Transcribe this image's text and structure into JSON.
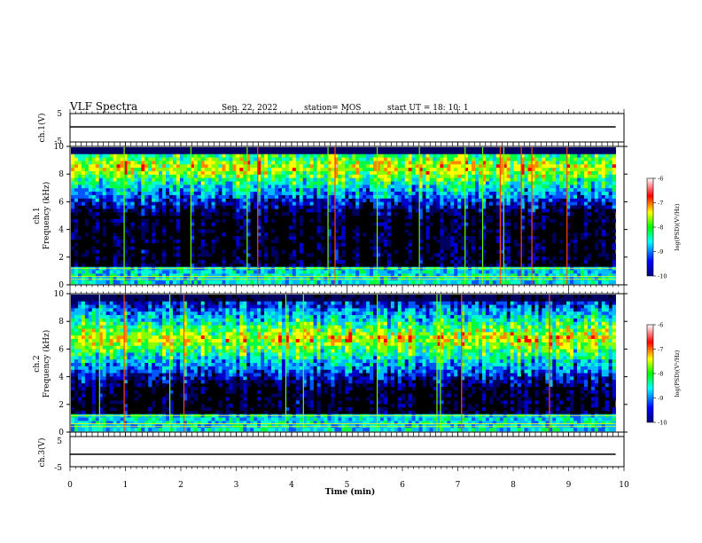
{
  "header": {
    "title": "VLF Spectra",
    "date": "Sep. 22, 2022",
    "station": "station= MOS",
    "start": "start  UT =   18: 10: 1"
  },
  "chart_data": [
    {
      "type": "line",
      "panel": "ch1-waveform",
      "ylabel": "ch.1(V)",
      "ylim": [
        -5,
        5
      ],
      "yticks": [
        "5",
        "-5"
      ],
      "level": 0
    },
    {
      "type": "heatmap",
      "panel": "ch1-spectrogram",
      "ylabel_top": "ch.1",
      "ylabel": "Frequency (kHz)",
      "ylim": [
        0,
        10
      ],
      "yticks": [
        "0",
        "2",
        "4",
        "6",
        "8",
        "10"
      ],
      "dominant_band_khz": [
        7.5,
        9.5
      ],
      "colorbar": {
        "label": "log(PSD)(V²/Hz)",
        "range": [
          -10,
          -6
        ],
        "ticks": [
          "-6",
          "-7",
          "-8",
          "-9",
          "-10"
        ]
      }
    },
    {
      "type": "heatmap",
      "panel": "ch2-spectrogram",
      "ylabel_top": "ch.2",
      "ylabel": "Frequency (kHz)",
      "ylim": [
        0,
        10
      ],
      "yticks": [
        "0",
        "2",
        "4",
        "6",
        "8",
        "10"
      ],
      "dominant_band_khz": [
        5.5,
        8
      ],
      "colorbar": {
        "label": "log(PSD)(V²/Hz)",
        "range": [
          -10,
          -6
        ],
        "ticks": [
          "-6",
          "-7",
          "-8",
          "-9",
          "-10"
        ]
      }
    },
    {
      "type": "line",
      "panel": "ch3-waveform",
      "ylabel": "ch.3(V)",
      "ylim": [
        -5,
        5
      ],
      "yticks": [
        "5",
        "-5"
      ],
      "level": 0
    }
  ],
  "xaxis": {
    "label": "Time (min)",
    "xlim": [
      0,
      10
    ],
    "ticks": [
      "0",
      "1",
      "2",
      "3",
      "4",
      "5",
      "6",
      "7",
      "8",
      "9",
      "10"
    ],
    "data_end": 9.85
  },
  "colors": {
    "scale": [
      "#000080",
      "#0000ff",
      "#00ffff",
      "#00ff00",
      "#ffff00",
      "#ff0000",
      "#ffffff"
    ],
    "background": "#000000"
  }
}
